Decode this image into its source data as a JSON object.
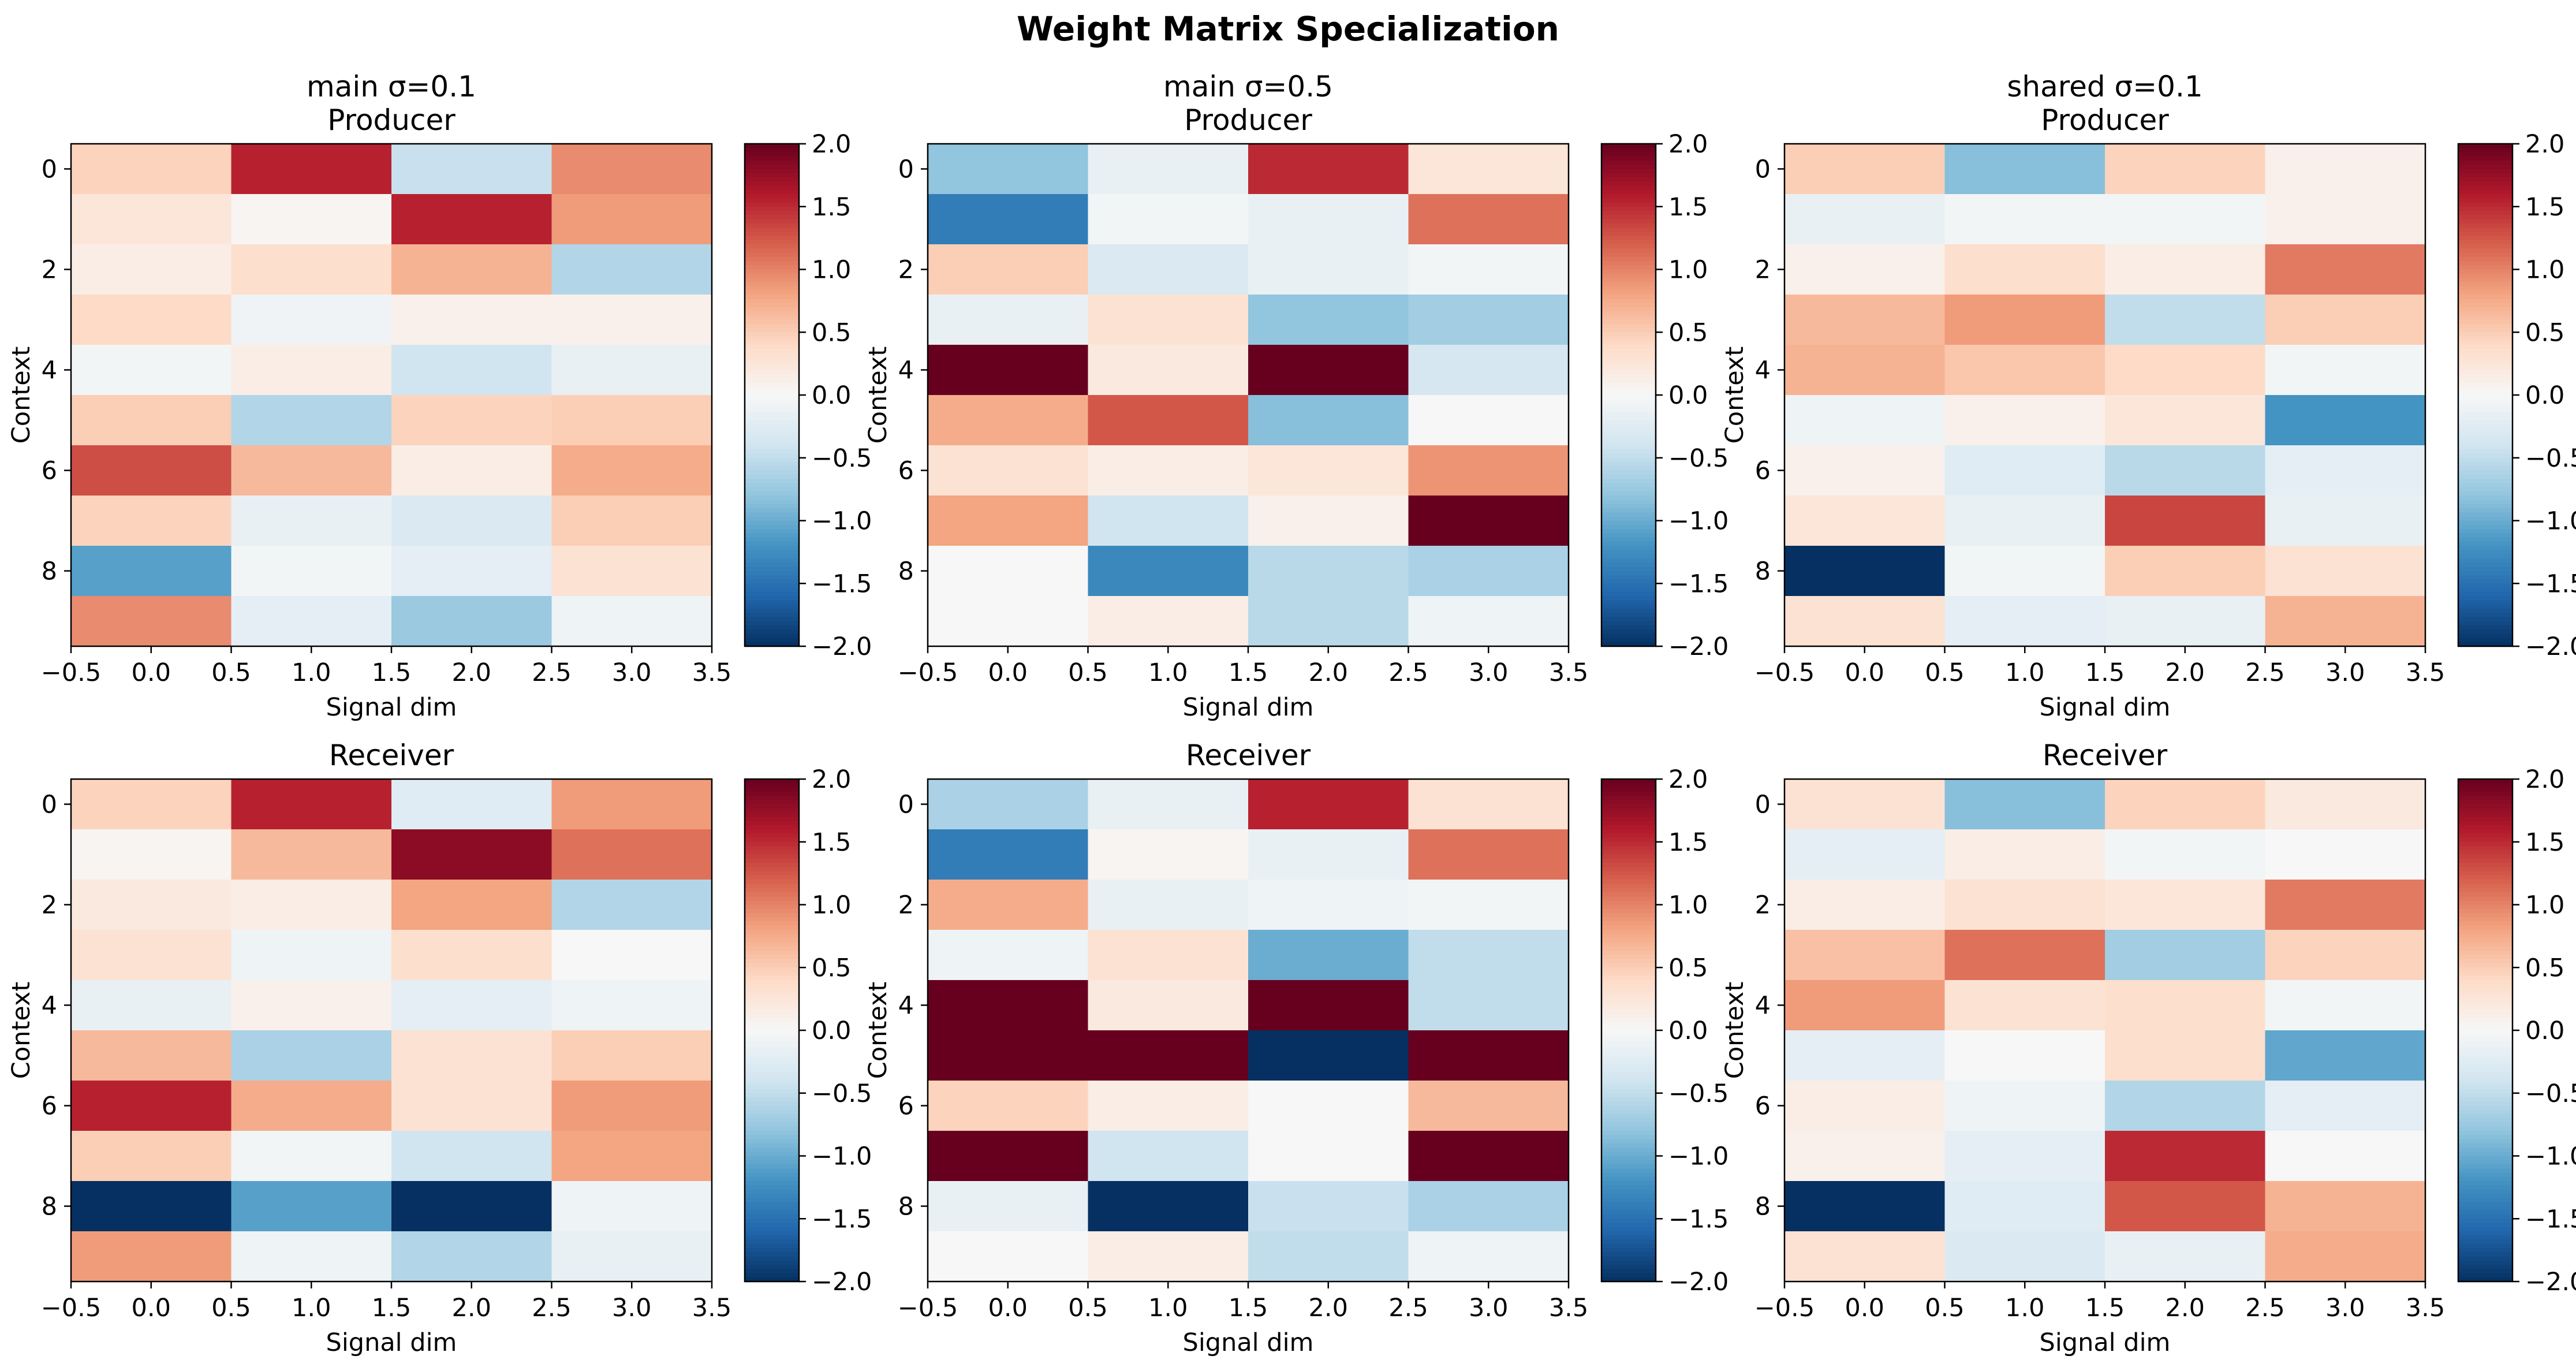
{
  "figure": {
    "title": "Weight Matrix Specialization"
  },
  "colormap": {
    "name": "RdBu_r",
    "stops": [
      "#053061",
      "#2166ac",
      "#4393c3",
      "#92c5de",
      "#d1e5f0",
      "#f7f7f7",
      "#fddbc7",
      "#f4a582",
      "#d6604d",
      "#b2182b",
      "#67001f"
    ],
    "vmin": -2.0,
    "vmax": 2.0,
    "ticks": [
      "2.0",
      "1.5",
      "1.0",
      "0.5",
      "0.0",
      "−0.5",
      "−1.0",
      "−1.5",
      "−2.0"
    ]
  },
  "chart_data": [
    {
      "type": "heatmap",
      "title": "main σ=0.1\nProducer",
      "xlabel": "Signal dim",
      "ylabel": "Context",
      "xlim": [
        -0.5,
        3.5
      ],
      "ylim": [
        9.5,
        -0.5
      ],
      "x_ticks": [
        "−0.5",
        "0.0",
        "0.5",
        "1.0",
        "1.5",
        "2.0",
        "2.5",
        "3.0",
        "3.5"
      ],
      "y_ticks": [
        "0",
        "2",
        "4",
        "6",
        "8"
      ],
      "values": [
        [
          0.45,
          1.55,
          -0.45,
          0.95
        ],
        [
          0.25,
          0.05,
          1.55,
          0.85
        ],
        [
          0.15,
          0.35,
          0.7,
          -0.6
        ],
        [
          0.4,
          -0.08,
          0.1,
          0.1
        ],
        [
          -0.05,
          0.15,
          -0.4,
          -0.15
        ],
        [
          0.5,
          -0.6,
          0.45,
          0.5
        ],
        [
          1.3,
          0.65,
          0.15,
          0.75
        ],
        [
          0.45,
          -0.15,
          -0.3,
          0.5
        ],
        [
          -1.1,
          -0.05,
          -0.2,
          0.3
        ],
        [
          0.95,
          -0.2,
          -0.75,
          -0.1
        ]
      ]
    },
    {
      "type": "heatmap",
      "title": "main σ=0.5\nProducer",
      "xlabel": "Signal dim",
      "ylabel": "Context",
      "xlim": [
        -0.5,
        3.5
      ],
      "ylim": [
        9.5,
        -0.5
      ],
      "x_ticks": [
        "−0.5",
        "0.0",
        "0.5",
        "1.0",
        "1.5",
        "2.0",
        "2.5",
        "3.0",
        "3.5"
      ],
      "y_ticks": [
        "0",
        "2",
        "4",
        "6",
        "8"
      ],
      "values": [
        [
          -0.8,
          -0.15,
          1.5,
          0.25
        ],
        [
          -1.4,
          -0.05,
          -0.15,
          1.1
        ],
        [
          0.5,
          -0.3,
          -0.15,
          -0.05
        ],
        [
          -0.15,
          0.3,
          -0.8,
          -0.7
        ],
        [
          2.0,
          0.2,
          2.0,
          -0.35
        ],
        [
          0.75,
          1.25,
          -0.85,
          0.0
        ],
        [
          0.3,
          0.15,
          0.25,
          0.9
        ],
        [
          0.8,
          -0.4,
          0.1,
          2.0
        ],
        [
          0.0,
          -1.3,
          -0.55,
          -0.65
        ],
        [
          0.0,
          0.15,
          -0.55,
          -0.1
        ]
      ]
    },
    {
      "type": "heatmap",
      "title": "shared σ=0.1\nProducer",
      "xlabel": "Signal dim",
      "ylabel": "Context",
      "xlim": [
        -0.5,
        3.5
      ],
      "ylim": [
        9.5,
        -0.5
      ],
      "x_ticks": [
        "−0.5",
        "0.0",
        "0.5",
        "1.0",
        "1.5",
        "2.0",
        "2.5",
        "3.0",
        "3.5"
      ],
      "y_ticks": [
        "0",
        "2",
        "4",
        "6",
        "8"
      ],
      "values": [
        [
          0.5,
          -0.85,
          0.45,
          0.1
        ],
        [
          -0.15,
          -0.05,
          -0.05,
          0.1
        ],
        [
          0.1,
          0.35,
          0.15,
          1.05
        ],
        [
          0.65,
          0.85,
          -0.5,
          0.5
        ],
        [
          0.7,
          0.55,
          0.4,
          -0.05
        ],
        [
          -0.1,
          0.1,
          0.25,
          -1.2
        ],
        [
          0.1,
          -0.25,
          -0.55,
          -0.2
        ],
        [
          0.25,
          -0.15,
          1.35,
          -0.15
        ],
        [
          -2.0,
          -0.05,
          0.5,
          0.3
        ],
        [
          0.3,
          -0.2,
          -0.15,
          0.7
        ]
      ]
    },
    {
      "type": "heatmap",
      "title": "Receiver",
      "xlabel": "Signal dim",
      "ylabel": "Context",
      "xlim": [
        -0.5,
        3.5
      ],
      "ylim": [
        9.5,
        -0.5
      ],
      "x_ticks": [
        "−0.5",
        "0.0",
        "0.5",
        "1.0",
        "1.5",
        "2.0",
        "2.5",
        "3.0",
        "3.5"
      ],
      "y_ticks": [
        "0",
        "2",
        "4",
        "6",
        "8"
      ],
      "values": [
        [
          0.45,
          1.55,
          -0.25,
          0.85
        ],
        [
          0.05,
          0.65,
          1.8,
          1.1
        ],
        [
          0.2,
          0.15,
          0.8,
          -0.6
        ],
        [
          0.3,
          -0.1,
          0.35,
          0.0
        ],
        [
          -0.15,
          0.1,
          -0.2,
          -0.1
        ],
        [
          0.65,
          -0.65,
          0.3,
          0.5
        ],
        [
          1.55,
          0.75,
          0.3,
          0.85
        ],
        [
          0.5,
          -0.05,
          -0.4,
          0.8
        ],
        [
          -2.0,
          -1.1,
          -2.0,
          -0.1
        ],
        [
          0.85,
          -0.1,
          -0.6,
          -0.15
        ]
      ]
    },
    {
      "type": "heatmap",
      "title": "Receiver",
      "xlabel": "Signal dim",
      "ylabel": "Context",
      "xlim": [
        -0.5,
        3.5
      ],
      "ylim": [
        9.5,
        -0.5
      ],
      "x_ticks": [
        "−0.5",
        "0.0",
        "0.5",
        "1.0",
        "1.5",
        "2.0",
        "2.5",
        "3.0",
        "3.5"
      ],
      "y_ticks": [
        "0",
        "2",
        "4",
        "6",
        "8"
      ],
      "values": [
        [
          -0.65,
          -0.15,
          1.55,
          0.3
        ],
        [
          -1.4,
          0.05,
          -0.15,
          1.1
        ],
        [
          0.75,
          -0.15,
          -0.1,
          -0.05
        ],
        [
          -0.1,
          0.3,
          -1.0,
          -0.5
        ],
        [
          2.0,
          0.2,
          2.0,
          -0.5
        ],
        [
          2.0,
          2.0,
          -2.0,
          2.0
        ],
        [
          0.45,
          0.15,
          0.0,
          0.65
        ],
        [
          2.0,
          -0.4,
          0.0,
          2.0
        ],
        [
          -0.15,
          -2.0,
          -0.45,
          -0.65
        ],
        [
          0.0,
          0.15,
          -0.5,
          -0.1
        ]
      ]
    },
    {
      "type": "heatmap",
      "title": "Receiver",
      "xlabel": "Signal dim",
      "ylabel": "Context",
      "xlim": [
        -0.5,
        3.5
      ],
      "ylim": [
        9.5,
        -0.5
      ],
      "x_ticks": [
        "−0.5",
        "0.0",
        "0.5",
        "1.0",
        "1.5",
        "2.0",
        "2.5",
        "3.0",
        "3.5"
      ],
      "y_ticks": [
        "0",
        "2",
        "4",
        "6",
        "8"
      ],
      "values": [
        [
          0.3,
          -0.85,
          0.45,
          0.2
        ],
        [
          -0.2,
          0.15,
          -0.05,
          0.0
        ],
        [
          0.15,
          0.3,
          0.25,
          1.05
        ],
        [
          0.6,
          1.1,
          -0.7,
          0.45
        ],
        [
          0.85,
          0.3,
          0.35,
          -0.05
        ],
        [
          -0.2,
          0.0,
          0.35,
          -1.05
        ],
        [
          0.15,
          -0.1,
          -0.6,
          -0.2
        ],
        [
          0.1,
          -0.2,
          1.5,
          0.0
        ],
        [
          -2.0,
          -0.25,
          1.25,
          0.7
        ],
        [
          0.3,
          -0.3,
          -0.15,
          0.75
        ]
      ]
    }
  ]
}
